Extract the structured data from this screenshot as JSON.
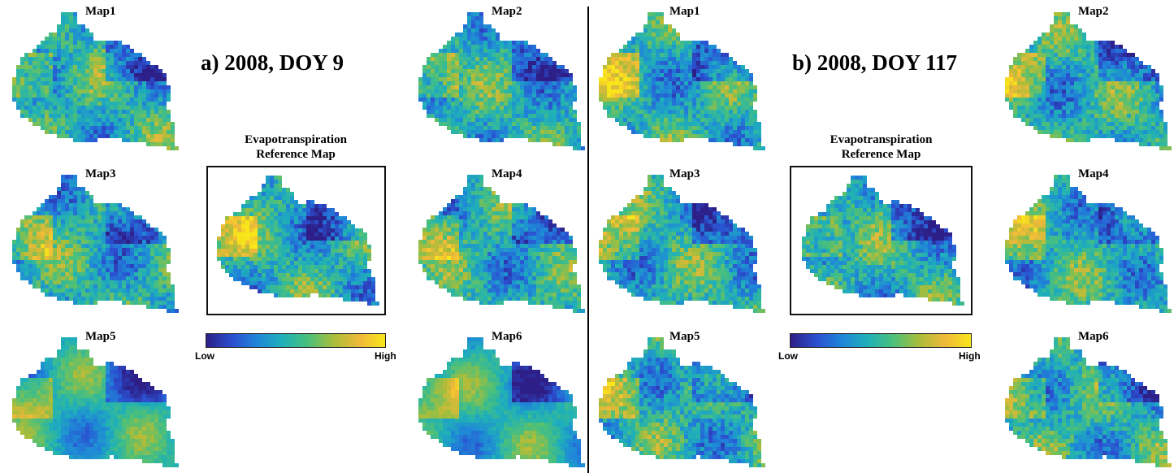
{
  "panels": [
    {
      "title": "a) 2008, DOY 9",
      "maps": [
        "Map1",
        "Map2",
        "Map3",
        "Map4",
        "Map5",
        "Map6"
      ],
      "reference_title": [
        "Evapotranspiration",
        "Reference Map"
      ],
      "colorbar": {
        "low_label": "Low",
        "high_label": "High"
      }
    },
    {
      "title": "b) 2008, DOY 117",
      "maps": [
        "Map1",
        "Map2",
        "Map3",
        "Map4",
        "Map5",
        "Map6"
      ],
      "reference_title": [
        "Evapotranspiration",
        "Reference Map"
      ],
      "colorbar": {
        "low_label": "Low",
        "high_label": "High"
      }
    }
  ],
  "colormap": [
    "#2d1f87",
    "#2b4fd0",
    "#1f86d8",
    "#1fb0b8",
    "#4cc07a",
    "#a9bd3a",
    "#f0b93a",
    "#f8e61a"
  ],
  "colors": {
    "divider": "#000000",
    "frame": "#111111"
  }
}
